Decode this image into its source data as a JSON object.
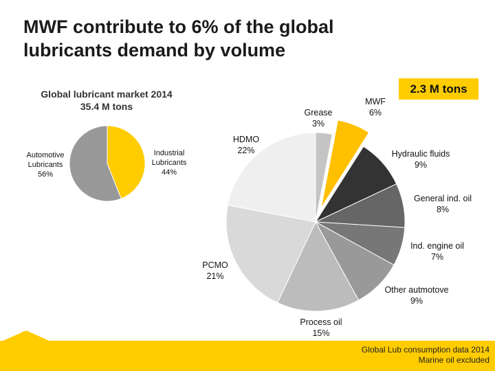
{
  "slide": {
    "title_line1": "MWF contribute to 6% of the global",
    "title_line2": "lubricants demand by volume",
    "badge": "2.3 M tons",
    "footer_line1": "Global Lub consumption data 2014",
    "footer_line2": "Marine oil excluded"
  },
  "colors": {
    "accent": "#ffcc00"
  },
  "chart_data": [
    {
      "type": "pie",
      "title": "Global lubricant market 2014",
      "subtitle": "35.4 M tons",
      "slices": [
        {
          "label_lines": [
            "Industrial",
            "Lubricants",
            "44%"
          ],
          "value": 44,
          "color": "#ffcc00"
        },
        {
          "label_lines": [
            "Automotive",
            "Lubricants",
            "56%"
          ],
          "value": 56,
          "color": "#999999"
        }
      ]
    },
    {
      "type": "pie",
      "slices": [
        {
          "label_lines": [
            "Grease",
            "3%"
          ],
          "value": 3,
          "color": "#c4c4c4"
        },
        {
          "label_lines": [
            "MWF",
            "6%"
          ],
          "value": 6,
          "color": "#ffc000",
          "exploded": true
        },
        {
          "label_lines": [
            "Hydraulic fluids",
            "9%"
          ],
          "value": 9,
          "color": "#333333"
        },
        {
          "label_lines": [
            "General ind. oil",
            "8%"
          ],
          "value": 8,
          "color": "#666666"
        },
        {
          "label_lines": [
            "Ind. engine oil",
            "7%"
          ],
          "value": 7,
          "color": "#777777"
        },
        {
          "label_lines": [
            "Other autmotove",
            "9%"
          ],
          "value": 9,
          "color": "#999999"
        },
        {
          "label_lines": [
            "Process oil",
            "15%"
          ],
          "value": 15,
          "color": "#bcbcbc"
        },
        {
          "label_lines": [
            "PCMO",
            "21%"
          ],
          "value": 21,
          "color": "#d9d9d9"
        },
        {
          "label_lines": [
            "HDMO",
            "22%"
          ],
          "value": 22,
          "color": "#efefef"
        }
      ]
    }
  ]
}
